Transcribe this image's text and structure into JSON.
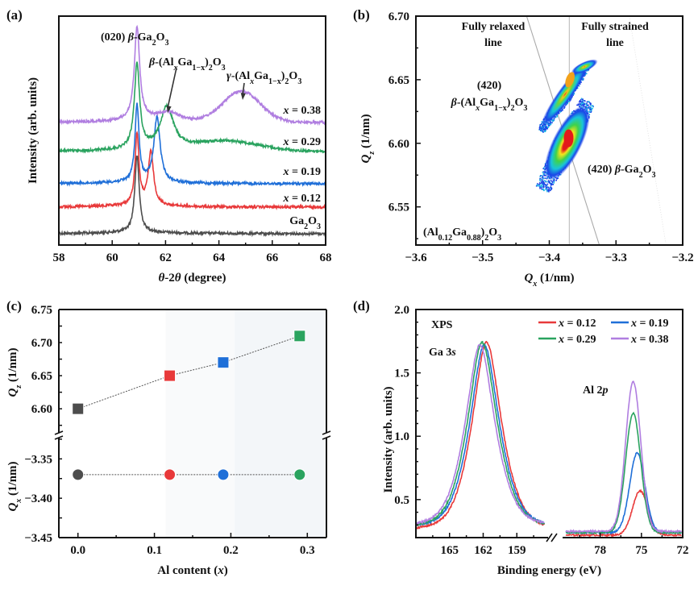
{
  "panels": {
    "a": {
      "label": "(a)"
    },
    "b": {
      "label": "(b)"
    },
    "c": {
      "label": "(c)"
    },
    "d": {
      "label": "(d)"
    }
  },
  "colors": {
    "Ga2O3": "#4d4d4d",
    "x012": "#e8393a",
    "x019": "#1f6fd8",
    "x029": "#2aa35f",
    "x038": "#b07ee0"
  },
  "chart_data": [
    {
      "id": "a",
      "type": "line",
      "title": "",
      "xlabel": "θ-2θ (degree)",
      "ylabel": "Intensity (arb. units)",
      "xlim": [
        58,
        68
      ],
      "xticks": [
        58,
        60,
        62,
        64,
        66,
        68
      ],
      "yticks": [],
      "annotations": [
        {
          "text": "(020) β-Ga₂O₃",
          "x": 60.9
        },
        {
          "text": "β-(AlₓGa₁₋ₓ)₂O₃",
          "x": 62.1,
          "arrow_to": [
            62.05,
            "x=0.38 / x=0.29 peak"
          ]
        },
        {
          "text": "γ-(AlₓGa₁₋ₓ)₂O₃",
          "x": 64.9,
          "arrow_to": [
            64.85,
            "x=0.38 broad peak"
          ]
        }
      ],
      "series": [
        {
          "name": "Ga2O3",
          "label": "Ga₂O₃",
          "color_key": "Ga2O3",
          "offset": 0,
          "peaks": [
            {
              "x": 60.93,
              "h": 1.0,
              "w": 0.1
            }
          ],
          "broad": []
        },
        {
          "name": "x=0.12",
          "label": "x = 0.12",
          "color_key": "x012",
          "offset": 1,
          "peaks": [
            {
              "x": 60.93,
              "h": 1.0,
              "w": 0.09
            },
            {
              "x": 61.45,
              "h": 0.75,
              "w": 0.12
            }
          ],
          "broad": []
        },
        {
          "name": "x=0.19",
          "label": "x = 0.19",
          "color_key": "x019",
          "offset": 2,
          "peaks": [
            {
              "x": 60.93,
              "h": 1.0,
              "w": 0.09
            },
            {
              "x": 61.68,
              "h": 0.85,
              "w": 0.14
            }
          ],
          "broad": []
        },
        {
          "name": "x=0.29",
          "label": "x = 0.29",
          "color_key": "x029",
          "offset": 3,
          "peaks": [
            {
              "x": 60.93,
              "h": 1.1,
              "w": 0.12
            },
            {
              "x": 62.05,
              "h": 0.55,
              "w": 0.3
            }
          ],
          "broad": [
            {
              "x": 64.3,
              "h": 0.13,
              "w": 1.2
            }
          ]
        },
        {
          "name": "x=0.38",
          "label": "x = 0.38",
          "color_key": "x038",
          "offset": 4,
          "peaks": [
            {
              "x": 60.93,
              "h": 1.15,
              "w": 0.12
            },
            {
              "x": 62.1,
              "h": 0.12,
              "w": 0.5
            }
          ],
          "broad": [
            {
              "x": 64.85,
              "h": 0.38,
              "w": 0.7
            }
          ]
        }
      ]
    },
    {
      "id": "b",
      "type": "heatmap",
      "title": "",
      "xlabel": "Qx (1/nm)",
      "ylabel": "Qz (1/nm)",
      "xlim": [
        -3.6,
        -3.2
      ],
      "ylim": [
        6.52,
        6.7
      ],
      "xticks": [
        -3.6,
        -3.5,
        -3.4,
        -3.3,
        -3.2
      ],
      "xtick_labels": [
        "−3.6",
        "−3.5",
        "−3.4",
        "−3.3",
        "−3.2"
      ],
      "yticks": [
        6.55,
        6.6,
        6.65,
        6.7
      ],
      "ytick_labels": [
        "6.55",
        "6.60",
        "6.65",
        "6.70"
      ],
      "lines": [
        {
          "name": "Fully relaxed line",
          "from": [
            -3.434,
            6.7
          ],
          "to": [
            -3.325,
            6.52
          ]
        },
        {
          "name": "Fully strained line",
          "from": [
            -3.37,
            6.7
          ],
          "to": [
            -3.37,
            6.52
          ]
        },
        {
          "name": "guide",
          "from": [
            -3.28,
            6.7
          ],
          "to": [
            -3.225,
            6.52
          ]
        }
      ],
      "spots": [
        {
          "name": "(420) β-(AlₓGa₁₋ₓ)₂O₃",
          "qx": -3.369,
          "qz": 6.65
        },
        {
          "name": "(420) β-Ga₂O₃",
          "qx": -3.371,
          "qz": 6.604
        }
      ],
      "annotations": [
        "Fully relaxed line",
        "Fully strained line",
        "(420) β-(AlₓGa₁₋ₓ)₂O₃",
        "(420) β-Ga₂O₃",
        "(Al₀.₁₂Ga₀.₈₈)₂O₃"
      ]
    },
    {
      "id": "c",
      "type": "scatter",
      "title": "",
      "xlabel": "Al content (x)",
      "xlim": [
        -0.025,
        0.325
      ],
      "xticks": [
        0.0,
        0.1,
        0.2,
        0.3
      ],
      "xtick_labels": [
        "0.0",
        "0.1",
        "0.2",
        "0.3"
      ],
      "top": {
        "ylabel": "Qz (1/nm)",
        "ylim": [
          6.56,
          6.75
        ],
        "yticks": [
          6.6,
          6.65,
          6.7,
          6.75
        ],
        "ytick_labels": [
          "6.60",
          "6.65",
          "6.70",
          "6.75"
        ],
        "marker": "square",
        "points": [
          {
            "x": 0.0,
            "y": 6.6,
            "color_key": "Ga2O3"
          },
          {
            "x": 0.12,
            "y": 6.65,
            "color_key": "x012"
          },
          {
            "x": 0.19,
            "y": 6.67,
            "color_key": "x019"
          },
          {
            "x": 0.29,
            "y": 6.71,
            "color_key": "x029"
          }
        ]
      },
      "bottom": {
        "ylabel": "Qx (1/nm)",
        "ylim": [
          -3.45,
          -3.32
        ],
        "yticks": [
          -3.35,
          -3.4,
          -3.45
        ],
        "ytick_labels": [
          "−3.35",
          "−3.40",
          "−3.45"
        ],
        "marker": "circle",
        "points": [
          {
            "x": 0.0,
            "y": -3.37,
            "color_key": "Ga2O3"
          },
          {
            "x": 0.12,
            "y": -3.37,
            "color_key": "x012"
          },
          {
            "x": 0.19,
            "y": -3.37,
            "color_key": "x019"
          },
          {
            "x": 0.29,
            "y": -3.37,
            "color_key": "x029"
          }
        ]
      }
    },
    {
      "id": "d",
      "type": "line",
      "title": "",
      "xlabel": "Binding energy (eV)",
      "ylabel": "Intensity (arb. units)",
      "ylim": [
        0.2,
        2.0
      ],
      "yticks": [
        0.5,
        1.0,
        1.5,
        2.0
      ],
      "ytick_labels": [
        "0.5",
        "1.0",
        "1.5",
        "2.0"
      ],
      "segments": [
        {
          "xlim": [
            168,
            156.5
          ],
          "xticks": [
            165,
            162,
            159
          ],
          "xtick_labels": [
            "165",
            "162",
            "159"
          ]
        },
        {
          "xlim": [
            80.5,
            72
          ],
          "xticks": [
            78,
            75,
            72
          ],
          "xtick_labels": [
            "78",
            "75",
            "72"
          ]
        }
      ],
      "annotations": [
        "XPS",
        "Ga 3s",
        "Al 2p"
      ],
      "legend": {
        "placement": "top-right",
        "columns": 2
      },
      "series": [
        {
          "name": "x = 0.12",
          "color_key": "x012",
          "ga_center": 161.7,
          "ga_peak": 1.74,
          "al_center": 75.1,
          "al_peak": 0.57,
          "base": 0.24
        },
        {
          "name": "x = 0.19",
          "color_key": "x019",
          "ga_center": 161.9,
          "ga_peak": 1.72,
          "al_center": 75.3,
          "al_peak": 0.87,
          "base": 0.26
        },
        {
          "name": "x = 0.29",
          "color_key": "x029",
          "ga_center": 162.1,
          "ga_peak": 1.74,
          "al_center": 75.6,
          "al_peak": 1.18,
          "base": 0.26
        },
        {
          "name": "x = 0.38",
          "color_key": "x038",
          "ga_center": 162.3,
          "ga_peak": 1.72,
          "al_center": 75.6,
          "al_peak": 1.43,
          "base": 0.27
        }
      ]
    }
  ]
}
